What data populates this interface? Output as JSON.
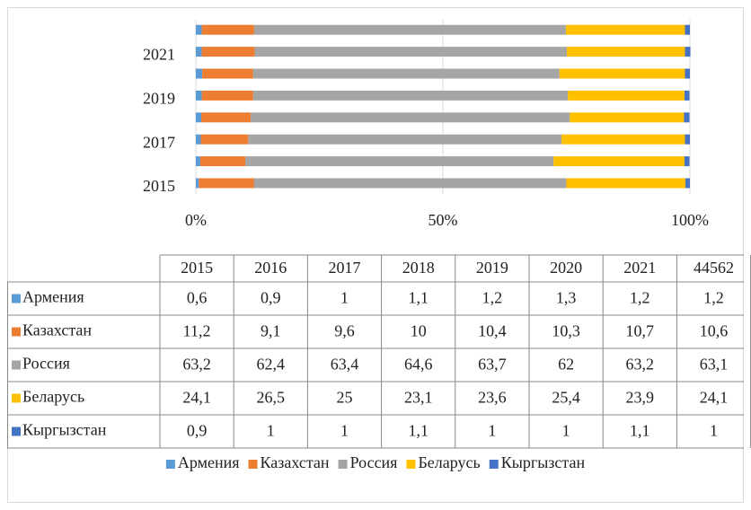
{
  "chart_data": {
    "type": "bar",
    "orientation": "horizontal",
    "stacked": "percent",
    "categories": [
      "2015",
      "2016",
      "2017",
      "2018",
      "2019",
      "2020",
      "2021",
      "44562"
    ],
    "xlim": [
      0,
      100
    ],
    "xticks": [
      {
        "value": 0,
        "label": "0%"
      },
      {
        "value": 50,
        "label": "50%"
      },
      {
        "value": 100,
        "label": "100%"
      }
    ],
    "grid": true,
    "legend": "bottom",
    "data_table": true,
    "series": [
      {
        "name": "Армения",
        "color": "#5b9bd5",
        "values": [
          0.6,
          0.9,
          1,
          1.1,
          1.2,
          1.3,
          1.2,
          1.2
        ],
        "value_labels": [
          "0,6",
          "0,9",
          "1",
          "1,1",
          "1,2",
          "1,3",
          "1,2",
          "1,2"
        ]
      },
      {
        "name": "Казахстан",
        "color": "#ed7d31",
        "values": [
          11.2,
          9.1,
          9.6,
          10,
          10.4,
          10.3,
          10.7,
          10.6
        ],
        "value_labels": [
          "11,2",
          "9,1",
          "9,6",
          "10",
          "10,4",
          "10,3",
          "10,7",
          "10,6"
        ]
      },
      {
        "name": "Россия",
        "color": "#a5a5a5",
        "values": [
          63.2,
          62.4,
          63.4,
          64.6,
          63.7,
          62,
          63.2,
          63.1
        ],
        "value_labels": [
          "63,2",
          "62,4",
          "63,4",
          "64,6",
          "63,7",
          "62",
          "63,2",
          "63,1"
        ]
      },
      {
        "name": "Беларусь",
        "color": "#ffc000",
        "values": [
          24.1,
          26.5,
          25,
          23.1,
          23.6,
          25.4,
          23.9,
          24.1
        ],
        "value_labels": [
          "24,1",
          "26,5",
          "25",
          "23,1",
          "23,6",
          "25,4",
          "23,9",
          "24,1"
        ]
      },
      {
        "name": "Кыргызстан",
        "color": "#4472c4",
        "values": [
          0.9,
          1,
          1,
          1.1,
          1,
          1,
          1.1,
          1
        ],
        "value_labels": [
          "0,9",
          "1",
          "1",
          "1,1",
          "1",
          "1",
          "1,1",
          "1"
        ]
      }
    ]
  }
}
